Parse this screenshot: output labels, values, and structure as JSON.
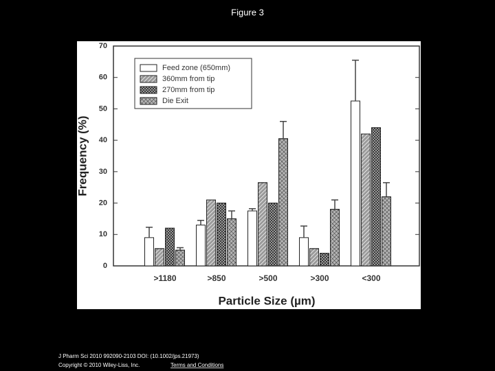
{
  "chart_data": {
    "type": "bar",
    "title": "Figure 3",
    "xlabel": "Particle Size (µm)",
    "ylabel": "Frequency (%)",
    "categories": [
      ">1180",
      ">850",
      ">500",
      ">300",
      "<300"
    ],
    "series": [
      {
        "name": "Feed zone (650mm)",
        "color": "#ffffff",
        "values": [
          9,
          13,
          17.5,
          9,
          52.5
        ],
        "errors": [
          3.3,
          1.5,
          0.7,
          3.7,
          13
        ]
      },
      {
        "name": "360mm from tip",
        "color": "#9a9a9a",
        "values": [
          5.5,
          21,
          26.5,
          5.5,
          42
        ]
      },
      {
        "name": "270mm from tip",
        "color": "#3a3a3a",
        "values": [
          12,
          20,
          20,
          4,
          44
        ]
      },
      {
        "name": "Die Exit",
        "color": "#b5b5b5",
        "values": [
          5,
          15,
          40.5,
          18,
          22
        ],
        "errors": [
          0.8,
          2.5,
          5.5,
          3,
          4.5
        ]
      }
    ],
    "ylim": [
      0,
      70
    ],
    "yticks": [
      0,
      10,
      20,
      30,
      40,
      50,
      60,
      70
    ],
    "grid": false,
    "legend": "upper left"
  },
  "footer": {
    "citation": "J Pharm Sci 2010 992090-2103 DOI: (10.1002/jps.21973)",
    "copyright": "Copyright © 2010 Wiley-Liss, Inc.",
    "link": "Terms and Conditions"
  }
}
